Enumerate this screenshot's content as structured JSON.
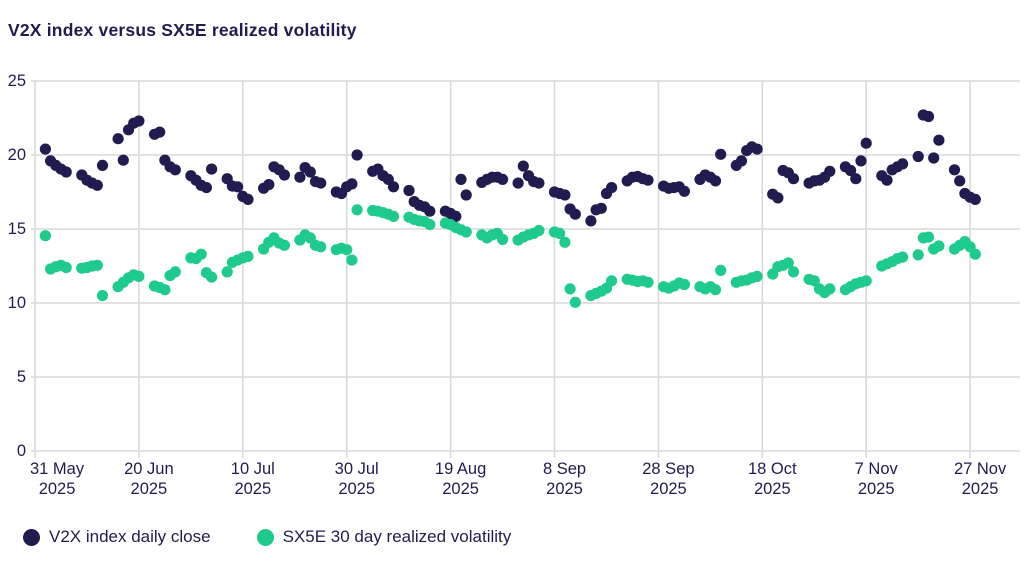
{
  "title": "V2X index versus SX5E realized volatility",
  "colors": {
    "navy": "#211c4f",
    "green": "#1fca8d",
    "grid": "#d9d9d9",
    "text": "#211c4f",
    "background": "#ffffff"
  },
  "legend": {
    "items": [
      {
        "label": "V2X index daily close",
        "color": "#211c4f"
      },
      {
        "label": "SX5E 30 day realized volatility",
        "color": "#1fca8d"
      }
    ]
  },
  "chart_data": {
    "type": "scatter",
    "title": "V2X index versus SX5E realized volatility",
    "xlabel": "",
    "ylabel": "",
    "x_unit": "calendar days since 31 May 2025 (trading days only)",
    "ylim": [
      0,
      25
    ],
    "y_ticks": [
      0,
      5,
      10,
      15,
      20,
      25
    ],
    "grid": true,
    "legend_position": "bottom",
    "x_ticks": [
      {
        "day": 0,
        "label1": "31 May",
        "label2": "2025"
      },
      {
        "day": 20,
        "label1": "20 Jun",
        "label2": "2025"
      },
      {
        "day": 40,
        "label1": "10 Jul",
        "label2": "2025"
      },
      {
        "day": 60,
        "label1": "30 Jul",
        "label2": "2025"
      },
      {
        "day": 80,
        "label1": "19 Aug",
        "label2": "2025"
      },
      {
        "day": 100,
        "label1": "8 Sep",
        "label2": "2025"
      },
      {
        "day": 120,
        "label1": "28 Sep",
        "label2": "2025"
      },
      {
        "day": 140,
        "label1": "18 Oct",
        "label2": "2025"
      },
      {
        "day": 160,
        "label1": "7 Nov",
        "label2": "2025"
      },
      {
        "day": 180,
        "label1": "27 Nov",
        "label2": "2025"
      }
    ],
    "series": [
      {
        "name": "V2X index daily close",
        "color": "#211c4f",
        "points": [
          [
            2,
            20.4
          ],
          [
            3,
            19.6
          ],
          [
            4,
            19.3
          ],
          [
            5,
            19.05
          ],
          [
            6,
            18.85
          ],
          [
            9,
            18.65
          ],
          [
            10,
            18.3
          ],
          [
            11,
            18.1
          ],
          [
            12,
            17.95
          ],
          [
            13,
            19.3
          ],
          [
            16,
            21.1
          ],
          [
            17,
            19.65
          ],
          [
            18,
            21.7
          ],
          [
            19,
            22.15
          ],
          [
            20,
            22.3
          ],
          [
            23,
            21.4
          ],
          [
            24,
            21.55
          ],
          [
            25,
            19.65
          ],
          [
            26,
            19.2
          ],
          [
            27,
            19.0
          ],
          [
            30,
            18.6
          ],
          [
            31,
            18.3
          ],
          [
            32,
            17.95
          ],
          [
            33,
            17.8
          ],
          [
            34,
            19.05
          ],
          [
            37,
            18.4
          ],
          [
            38,
            17.9
          ],
          [
            39,
            17.85
          ],
          [
            40,
            17.2
          ],
          [
            41,
            17.0
          ],
          [
            44,
            17.75
          ],
          [
            45,
            18.0
          ],
          [
            46,
            19.2
          ],
          [
            47,
            19.0
          ],
          [
            48,
            18.65
          ],
          [
            51,
            18.5
          ],
          [
            52,
            19.15
          ],
          [
            53,
            18.85
          ],
          [
            54,
            18.2
          ],
          [
            55,
            18.1
          ],
          [
            58,
            17.5
          ],
          [
            59,
            17.4
          ],
          [
            60,
            17.85
          ],
          [
            61,
            18.05
          ],
          [
            62,
            20.0
          ],
          [
            65,
            18.9
          ],
          [
            66,
            19.05
          ],
          [
            67,
            18.6
          ],
          [
            68,
            18.35
          ],
          [
            69,
            17.85
          ],
          [
            72,
            17.6
          ],
          [
            73,
            16.85
          ],
          [
            74,
            16.6
          ],
          [
            75,
            16.5
          ],
          [
            76,
            16.2
          ],
          [
            79,
            16.2
          ],
          [
            80,
            16.05
          ],
          [
            81,
            15.85
          ],
          [
            82,
            18.35
          ],
          [
            83,
            17.3
          ],
          [
            86,
            18.15
          ],
          [
            87,
            18.35
          ],
          [
            88,
            18.5
          ],
          [
            89,
            18.5
          ],
          [
            90,
            18.35
          ],
          [
            93,
            18.1
          ],
          [
            94,
            19.25
          ],
          [
            95,
            18.6
          ],
          [
            96,
            18.2
          ],
          [
            97,
            18.1
          ],
          [
            100,
            17.5
          ],
          [
            101,
            17.4
          ],
          [
            102,
            17.3
          ],
          [
            103,
            16.35
          ],
          [
            104,
            16.0
          ],
          [
            107,
            15.55
          ],
          [
            108,
            16.3
          ],
          [
            109,
            16.4
          ],
          [
            110,
            17.4
          ],
          [
            111,
            17.8
          ],
          [
            114,
            18.25
          ],
          [
            115,
            18.5
          ],
          [
            116,
            18.55
          ],
          [
            117,
            18.4
          ],
          [
            118,
            18.3
          ],
          [
            121,
            17.9
          ],
          [
            122,
            17.75
          ],
          [
            123,
            17.8
          ],
          [
            124,
            17.85
          ],
          [
            125,
            17.55
          ],
          [
            128,
            18.35
          ],
          [
            129,
            18.65
          ],
          [
            130,
            18.5
          ],
          [
            131,
            18.25
          ],
          [
            132,
            20.05
          ],
          [
            135,
            19.3
          ],
          [
            136,
            19.6
          ],
          [
            137,
            20.3
          ],
          [
            138,
            20.55
          ],
          [
            139,
            20.4
          ],
          [
            142,
            17.35
          ],
          [
            143,
            17.1
          ],
          [
            144,
            18.95
          ],
          [
            145,
            18.8
          ],
          [
            146,
            18.4
          ],
          [
            149,
            18.1
          ],
          [
            150,
            18.25
          ],
          [
            151,
            18.3
          ],
          [
            152,
            18.5
          ],
          [
            153,
            18.9
          ],
          [
            156,
            19.2
          ],
          [
            157,
            18.95
          ],
          [
            158,
            18.4
          ],
          [
            159,
            19.6
          ],
          [
            160,
            20.8
          ],
          [
            163,
            18.6
          ],
          [
            164,
            18.3
          ],
          [
            165,
            19.0
          ],
          [
            166,
            19.2
          ],
          [
            167,
            19.4
          ],
          [
            170,
            19.9
          ],
          [
            171,
            22.7
          ],
          [
            172,
            22.6
          ],
          [
            173,
            19.8
          ],
          [
            174,
            21.0
          ],
          [
            177,
            19.0
          ],
          [
            178,
            18.25
          ],
          [
            179,
            17.4
          ],
          [
            180,
            17.15
          ],
          [
            181,
            17.0
          ]
        ]
      },
      {
        "name": "SX5E 30 day realized volatility",
        "color": "#1fca8d",
        "points": [
          [
            2,
            14.55
          ],
          [
            3,
            12.3
          ],
          [
            4,
            12.45
          ],
          [
            5,
            12.55
          ],
          [
            6,
            12.4
          ],
          [
            9,
            12.35
          ],
          [
            10,
            12.4
          ],
          [
            11,
            12.5
          ],
          [
            12,
            12.55
          ],
          [
            13,
            10.5
          ],
          [
            16,
            11.1
          ],
          [
            17,
            11.4
          ],
          [
            18,
            11.7
          ],
          [
            19,
            11.9
          ],
          [
            20,
            11.8
          ],
          [
            23,
            11.15
          ],
          [
            24,
            11.05
          ],
          [
            25,
            10.9
          ],
          [
            26,
            11.85
          ],
          [
            27,
            12.1
          ],
          [
            30,
            13.05
          ],
          [
            31,
            13.0
          ],
          [
            32,
            13.3
          ],
          [
            33,
            12.05
          ],
          [
            34,
            11.75
          ],
          [
            37,
            12.1
          ],
          [
            38,
            12.75
          ],
          [
            39,
            12.9
          ],
          [
            40,
            13.05
          ],
          [
            41,
            13.15
          ],
          [
            44,
            13.65
          ],
          [
            45,
            14.1
          ],
          [
            46,
            14.4
          ],
          [
            47,
            14.05
          ],
          [
            48,
            13.9
          ],
          [
            51,
            14.25
          ],
          [
            52,
            14.6
          ],
          [
            53,
            14.4
          ],
          [
            54,
            13.9
          ],
          [
            55,
            13.8
          ],
          [
            58,
            13.6
          ],
          [
            59,
            13.7
          ],
          [
            60,
            13.6
          ],
          [
            61,
            12.9
          ],
          [
            62,
            16.3
          ],
          [
            65,
            16.25
          ],
          [
            66,
            16.2
          ],
          [
            67,
            16.1
          ],
          [
            68,
            16.0
          ],
          [
            69,
            15.85
          ],
          [
            72,
            15.8
          ],
          [
            73,
            15.65
          ],
          [
            74,
            15.55
          ],
          [
            75,
            15.5
          ],
          [
            76,
            15.3
          ],
          [
            79,
            15.4
          ],
          [
            80,
            15.3
          ],
          [
            81,
            15.1
          ],
          [
            82,
            14.95
          ],
          [
            83,
            14.8
          ],
          [
            86,
            14.6
          ],
          [
            87,
            14.4
          ],
          [
            88,
            14.6
          ],
          [
            89,
            14.7
          ],
          [
            90,
            14.3
          ],
          [
            93,
            14.25
          ],
          [
            94,
            14.45
          ],
          [
            95,
            14.6
          ],
          [
            96,
            14.7
          ],
          [
            97,
            14.9
          ],
          [
            100,
            14.8
          ],
          [
            101,
            14.7
          ],
          [
            102,
            14.1
          ],
          [
            103,
            10.95
          ],
          [
            104,
            10.05
          ],
          [
            107,
            10.5
          ],
          [
            108,
            10.65
          ],
          [
            109,
            10.8
          ],
          [
            110,
            11.0
          ],
          [
            111,
            11.5
          ],
          [
            114,
            11.6
          ],
          [
            115,
            11.55
          ],
          [
            116,
            11.45
          ],
          [
            117,
            11.5
          ],
          [
            118,
            11.4
          ],
          [
            121,
            11.1
          ],
          [
            122,
            11.0
          ],
          [
            123,
            11.15
          ],
          [
            124,
            11.35
          ],
          [
            125,
            11.25
          ],
          [
            128,
            11.1
          ],
          [
            129,
            10.95
          ],
          [
            130,
            11.1
          ],
          [
            131,
            10.9
          ],
          [
            132,
            12.2
          ],
          [
            135,
            11.4
          ],
          [
            136,
            11.5
          ],
          [
            137,
            11.55
          ],
          [
            138,
            11.7
          ],
          [
            139,
            11.8
          ],
          [
            142,
            11.95
          ],
          [
            143,
            12.45
          ],
          [
            144,
            12.55
          ],
          [
            145,
            12.7
          ],
          [
            146,
            12.1
          ],
          [
            149,
            11.6
          ],
          [
            150,
            11.5
          ],
          [
            151,
            10.95
          ],
          [
            152,
            10.7
          ],
          [
            153,
            10.95
          ],
          [
            156,
            10.9
          ],
          [
            157,
            11.1
          ],
          [
            158,
            11.3
          ],
          [
            159,
            11.4
          ],
          [
            160,
            11.5
          ],
          [
            163,
            12.5
          ],
          [
            164,
            12.65
          ],
          [
            165,
            12.8
          ],
          [
            166,
            13.0
          ],
          [
            167,
            13.1
          ],
          [
            170,
            13.25
          ],
          [
            171,
            14.4
          ],
          [
            172,
            14.45
          ],
          [
            173,
            13.65
          ],
          [
            174,
            13.85
          ],
          [
            177,
            13.65
          ],
          [
            178,
            13.9
          ],
          [
            179,
            14.15
          ],
          [
            180,
            13.8
          ],
          [
            181,
            13.3
          ]
        ]
      }
    ]
  }
}
